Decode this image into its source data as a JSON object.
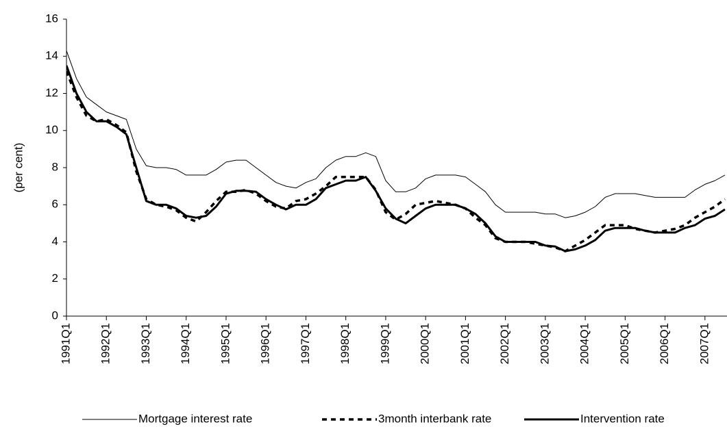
{
  "chart_data": {
    "type": "line",
    "y_label": "(per cent)",
    "categories": [
      "1991Q1",
      null,
      null,
      null,
      "1992Q1",
      null,
      null,
      null,
      "1993Q1",
      null,
      null,
      null,
      "1994Q1",
      null,
      null,
      null,
      "1995Q1",
      null,
      null,
      null,
      "1996Q1",
      null,
      null,
      null,
      "1997Q1",
      null,
      null,
      null,
      "1998Q1",
      null,
      null,
      null,
      "1999Q1",
      null,
      null,
      null,
      "2000Q1",
      null,
      null,
      null,
      "2001Q1",
      null,
      null,
      null,
      "2002Q1",
      null,
      null,
      null,
      "2003Q1",
      null,
      null,
      null,
      "2004Q1",
      null,
      null,
      null,
      "2005Q1",
      null,
      null,
      null,
      "2006Q1",
      null,
      null,
      null,
      "2007Q1",
      null,
      null
    ],
    "series": [
      {
        "name": "Mortgage interest rate",
        "color": "#000000",
        "values": [
          14.3,
          12.8,
          11.8,
          11.4,
          11.0,
          10.8,
          10.6,
          9.0,
          8.1,
          8.0,
          8.0,
          7.9,
          7.6,
          7.6,
          7.6,
          7.9,
          8.3,
          8.4,
          8.4,
          8.0,
          7.6,
          7.2,
          7.0,
          6.9,
          7.2,
          7.4,
          8.0,
          8.4,
          8.6,
          8.6,
          8.8,
          8.6,
          7.3,
          6.7,
          6.7,
          6.9,
          7.4,
          7.6,
          7.6,
          7.6,
          7.5,
          7.1,
          6.7,
          6.0,
          5.6,
          5.6,
          5.6,
          5.6,
          5.5,
          5.5,
          5.3,
          5.4,
          5.6,
          5.9,
          6.4,
          6.6,
          6.6,
          6.6,
          6.5,
          6.4,
          6.4,
          6.4,
          6.4,
          6.8,
          7.1,
          7.3,
          7.6
        ]
      },
      {
        "name": "3month interbank rate",
        "color": "#000000",
        "values": [
          13.2,
          11.8,
          10.8,
          10.5,
          10.6,
          10.3,
          9.9,
          7.8,
          6.3,
          6.0,
          5.9,
          5.7,
          5.3,
          5.1,
          5.6,
          6.2,
          6.7,
          6.7,
          6.8,
          6.6,
          6.2,
          5.9,
          5.8,
          6.2,
          6.3,
          6.6,
          7.0,
          7.5,
          7.5,
          7.5,
          7.5,
          6.8,
          5.6,
          5.2,
          5.5,
          6.0,
          6.1,
          6.2,
          6.1,
          6.0,
          5.8,
          5.3,
          4.9,
          4.2,
          4.0,
          4.0,
          4.0,
          3.9,
          3.8,
          3.7,
          3.5,
          3.8,
          4.1,
          4.5,
          4.9,
          4.9,
          4.9,
          4.7,
          4.6,
          4.5,
          4.6,
          4.7,
          4.9,
          5.3,
          5.6,
          5.9,
          6.3
        ]
      },
      {
        "name": "Intervention rate",
        "color": "#000000",
        "values": [
          13.5,
          12.0,
          11.0,
          10.5,
          10.5,
          10.2,
          9.8,
          8.0,
          6.2,
          6.0,
          6.0,
          5.8,
          5.4,
          5.3,
          5.4,
          5.9,
          6.6,
          6.75,
          6.75,
          6.7,
          6.3,
          6.0,
          5.75,
          6.0,
          6.0,
          6.3,
          6.9,
          7.1,
          7.3,
          7.3,
          7.5,
          6.75,
          5.8,
          5.25,
          5.0,
          5.4,
          5.8,
          6.0,
          6.0,
          6.0,
          5.8,
          5.5,
          5.0,
          4.3,
          4.0,
          4.0,
          4.0,
          4.0,
          3.8,
          3.75,
          3.5,
          3.6,
          3.8,
          4.1,
          4.6,
          4.75,
          4.75,
          4.75,
          4.6,
          4.5,
          4.5,
          4.5,
          4.75,
          4.9,
          5.25,
          5.4,
          5.75
        ]
      }
    ],
    "ylim": [
      0,
      16
    ],
    "yticks": [
      0,
      2,
      4,
      6,
      8,
      10,
      12,
      14,
      16
    ]
  }
}
